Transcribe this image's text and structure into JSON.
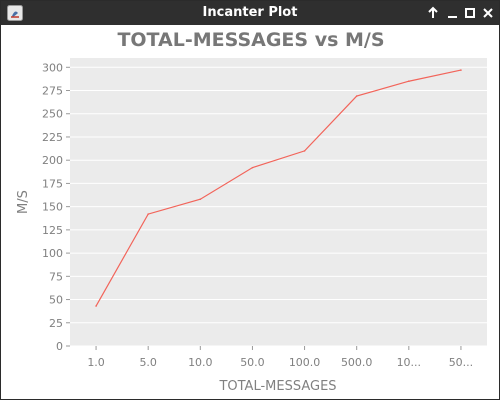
{
  "window": {
    "title": "Incanter Plot"
  },
  "icons": {
    "app": "java-app-icon",
    "maximize": "arrow-up-icon",
    "minimize": "minimize-icon",
    "restore": "restore-icon",
    "close": "close-icon"
  },
  "colors": {
    "titlebar": "#2f2f2f",
    "plot_background": "#ebebeb",
    "gridline": "#ffffff",
    "series_line": "#f2645a",
    "text": "#808080",
    "title_text": "#777777"
  },
  "chart_data": {
    "type": "line",
    "title": "TOTAL-MESSAGES vs M/S",
    "xlabel": "TOTAL-MESSAGES",
    "ylabel": "M/S",
    "categories": [
      "1.0",
      "5.0",
      "10.0",
      "50.0",
      "100.0",
      "500.0",
      "10...",
      "50..."
    ],
    "series": [
      {
        "values": [
          43,
          142,
          158,
          192,
          210,
          269,
          285,
          297
        ]
      }
    ],
    "ylim": [
      0,
      310
    ],
    "yticks": [
      0,
      25,
      50,
      75,
      100,
      125,
      150,
      175,
      200,
      225,
      250,
      275,
      300
    ],
    "grid": true,
    "legend": "none"
  }
}
